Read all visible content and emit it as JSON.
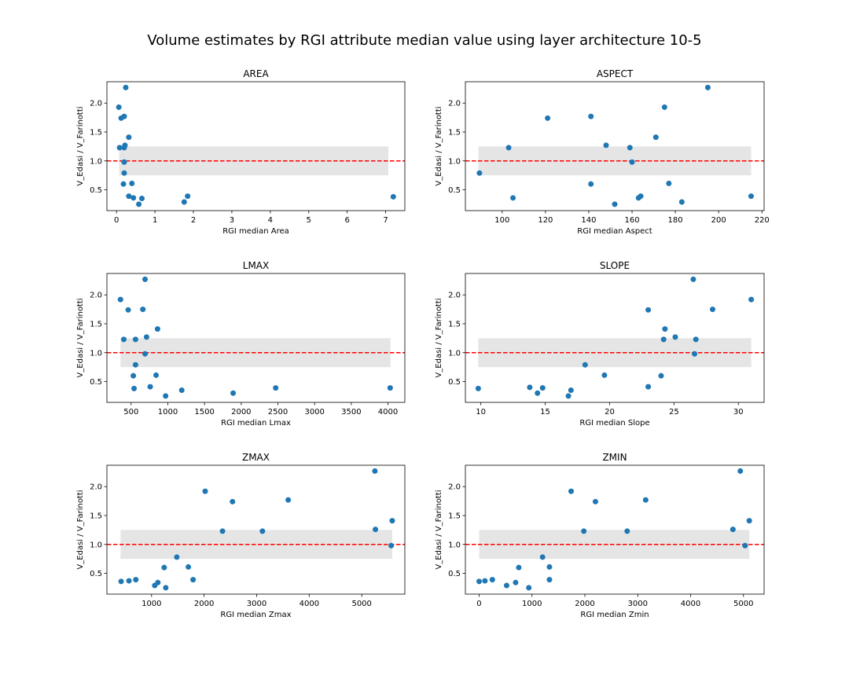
{
  "figure": {
    "suptitle": "Volume estimates by RGI attribute median value using layer architecture 10-5"
  },
  "style": {
    "marker_color": "#1f77b4",
    "reference_line_color": "#ff0000",
    "band_color": "#e5e5e5"
  },
  "chart_data": [
    {
      "type": "scatter",
      "title": "AREA",
      "xlabel": "RGI median Area",
      "ylabel": "V_Edasi / V_Farinotti",
      "xlim": [
        -0.25,
        7.5
      ],
      "ylim": [
        0.14,
        2.37
      ],
      "xticks": [
        0,
        1,
        2,
        3,
        4,
        5,
        6,
        7
      ],
      "yticks": [
        0.5,
        1.0,
        1.5,
        2.0
      ],
      "reference_line": 1.0,
      "band": [
        0.75,
        1.25
      ],
      "band_x": [
        0.07,
        7.07
      ],
      "points": [
        [
          0.06,
          1.93
        ],
        [
          0.12,
          1.74
        ],
        [
          0.2,
          1.77
        ],
        [
          0.24,
          2.27
        ],
        [
          0.08,
          1.23
        ],
        [
          0.2,
          1.23
        ],
        [
          0.22,
          1.27
        ],
        [
          0.32,
          1.41
        ],
        [
          0.2,
          0.98
        ],
        [
          0.2,
          0.79
        ],
        [
          0.18,
          0.6
        ],
        [
          0.4,
          0.61
        ],
        [
          0.32,
          0.39
        ],
        [
          0.44,
          0.36
        ],
        [
          0.66,
          0.35
        ],
        [
          0.58,
          0.25
        ],
        [
          1.85,
          0.39
        ],
        [
          1.76,
          0.29
        ],
        [
          7.2,
          0.38
        ]
      ]
    },
    {
      "type": "scatter",
      "title": "ASPECT",
      "xlabel": "RGI median Aspect",
      "ylabel": "V_Edasi / V_Farinotti",
      "xlim": [
        83,
        221
      ],
      "ylim": [
        0.14,
        2.37
      ],
      "xticks": [
        100,
        120,
        140,
        160,
        180,
        200,
        220
      ],
      "yticks": [
        0.5,
        1.0,
        1.5,
        2.0
      ],
      "reference_line": 1.0,
      "band": [
        0.75,
        1.25
      ],
      "band_x": [
        89,
        215
      ],
      "points": [
        [
          89.5,
          0.79
        ],
        [
          103,
          1.23
        ],
        [
          105,
          0.36
        ],
        [
          121,
          1.74
        ],
        [
          141,
          1.77
        ],
        [
          141,
          0.6
        ],
        [
          148,
          1.27
        ],
        [
          152,
          0.25
        ],
        [
          159,
          1.23
        ],
        [
          160,
          0.98
        ],
        [
          163,
          0.36
        ],
        [
          164,
          0.39
        ],
        [
          171,
          1.41
        ],
        [
          175,
          1.93
        ],
        [
          177,
          0.61
        ],
        [
          183,
          0.29
        ],
        [
          195,
          2.27
        ],
        [
          215,
          0.39
        ]
      ]
    },
    {
      "type": "scatter",
      "title": "LMAX",
      "xlabel": "RGI median Lmax",
      "ylabel": "V_Edasi / V_Farinotti",
      "xlim": [
        170,
        4230
      ],
      "ylim": [
        0.14,
        2.37
      ],
      "xticks": [
        500,
        1000,
        1500,
        2000,
        2500,
        3000,
        3500,
        4000
      ],
      "yticks": [
        0.5,
        1.0,
        1.5,
        2.0
      ],
      "reference_line": 1.0,
      "band": [
        0.75,
        1.25
      ],
      "band_x": [
        355,
        4035
      ],
      "points": [
        [
          355,
          1.92
        ],
        [
          400,
          1.23
        ],
        [
          460,
          1.74
        ],
        [
          530,
          0.6
        ],
        [
          540,
          0.38
        ],
        [
          560,
          1.23
        ],
        [
          560,
          0.79
        ],
        [
          660,
          1.75
        ],
        [
          690,
          2.27
        ],
        [
          690,
          0.98
        ],
        [
          710,
          1.27
        ],
        [
          760,
          0.41
        ],
        [
          840,
          0.61
        ],
        [
          860,
          1.41
        ],
        [
          970,
          0.25
        ],
        [
          1190,
          0.35
        ],
        [
          1890,
          0.3
        ],
        [
          2470,
          0.39
        ],
        [
          4030,
          0.39
        ]
      ]
    },
    {
      "type": "scatter",
      "title": "SLOPE",
      "xlabel": "RGI median Slope",
      "ylabel": "V_Edasi / V_Farinotti",
      "xlim": [
        8.8,
        32
      ],
      "ylim": [
        0.14,
        2.37
      ],
      "xticks": [
        10,
        15,
        20,
        25,
        30
      ],
      "yticks": [
        0.5,
        1.0,
        1.5,
        2.0
      ],
      "reference_line": 1.0,
      "band": [
        0.75,
        1.25
      ],
      "band_x": [
        9.8,
        31.0
      ],
      "points": [
        [
          9.8,
          0.38
        ],
        [
          13.8,
          0.4
        ],
        [
          14.4,
          0.3
        ],
        [
          14.8,
          0.39
        ],
        [
          16.8,
          0.25
        ],
        [
          17.0,
          0.35
        ],
        [
          18.1,
          0.79
        ],
        [
          19.6,
          0.61
        ],
        [
          23.0,
          1.74
        ],
        [
          23.0,
          0.41
        ],
        [
          24.0,
          0.6
        ],
        [
          24.2,
          1.23
        ],
        [
          24.3,
          1.41
        ],
        [
          25.1,
          1.27
        ],
        [
          26.5,
          2.27
        ],
        [
          26.6,
          0.98
        ],
        [
          26.7,
          1.23
        ],
        [
          28.0,
          1.75
        ],
        [
          31.0,
          1.92
        ]
      ]
    },
    {
      "type": "scatter",
      "title": "ZMAX",
      "xlabel": "RGI median Zmax",
      "ylabel": "V_Edasi / V_Farinotti",
      "xlim": [
        150,
        5820
      ],
      "ylim": [
        0.14,
        2.37
      ],
      "xticks": [
        1000,
        2000,
        3000,
        4000,
        5000
      ],
      "yticks": [
        0.5,
        1.0,
        1.5,
        2.0
      ],
      "reference_line": 1.0,
      "band": [
        0.75,
        1.25
      ],
      "band_x": [
        410,
        5580
      ],
      "points": [
        [
          420,
          0.36
        ],
        [
          570,
          0.37
        ],
        [
          700,
          0.39
        ],
        [
          1060,
          0.29
        ],
        [
          1120,
          0.34
        ],
        [
          1240,
          0.6
        ],
        [
          1270,
          0.25
        ],
        [
          1480,
          0.78
        ],
        [
          1700,
          0.61
        ],
        [
          1790,
          0.39
        ],
        [
          2020,
          1.92
        ],
        [
          2350,
          1.23
        ],
        [
          2540,
          1.74
        ],
        [
          3110,
          1.23
        ],
        [
          3600,
          1.77
        ],
        [
          5250,
          2.27
        ],
        [
          5260,
          1.26
        ],
        [
          5560,
          0.98
        ],
        [
          5580,
          1.41
        ]
      ]
    },
    {
      "type": "scatter",
      "title": "ZMIN",
      "xlabel": "RGI median Zmin",
      "ylabel": "V_Edasi / V_Farinotti",
      "xlim": [
        -260,
        5390
      ],
      "ylim": [
        0.14,
        2.37
      ],
      "xticks": [
        0,
        1000,
        2000,
        3000,
        4000,
        5000
      ],
      "yticks": [
        0.5,
        1.0,
        1.5,
        2.0
      ],
      "reference_line": 1.0,
      "band": [
        0.75,
        1.25
      ],
      "band_x": [
        0,
        5110
      ],
      "points": [
        [
          0,
          0.36
        ],
        [
          110,
          0.37
        ],
        [
          250,
          0.39
        ],
        [
          520,
          0.29
        ],
        [
          690,
          0.34
        ],
        [
          750,
          0.6
        ],
        [
          940,
          0.25
        ],
        [
          1200,
          0.78
        ],
        [
          1330,
          0.61
        ],
        [
          1330,
          0.39
        ],
        [
          1740,
          1.92
        ],
        [
          1980,
          1.23
        ],
        [
          2200,
          1.74
        ],
        [
          2800,
          1.23
        ],
        [
          3150,
          1.77
        ],
        [
          4800,
          1.26
        ],
        [
          4940,
          2.27
        ],
        [
          5030,
          0.98
        ],
        [
          5110,
          1.41
        ]
      ]
    }
  ]
}
